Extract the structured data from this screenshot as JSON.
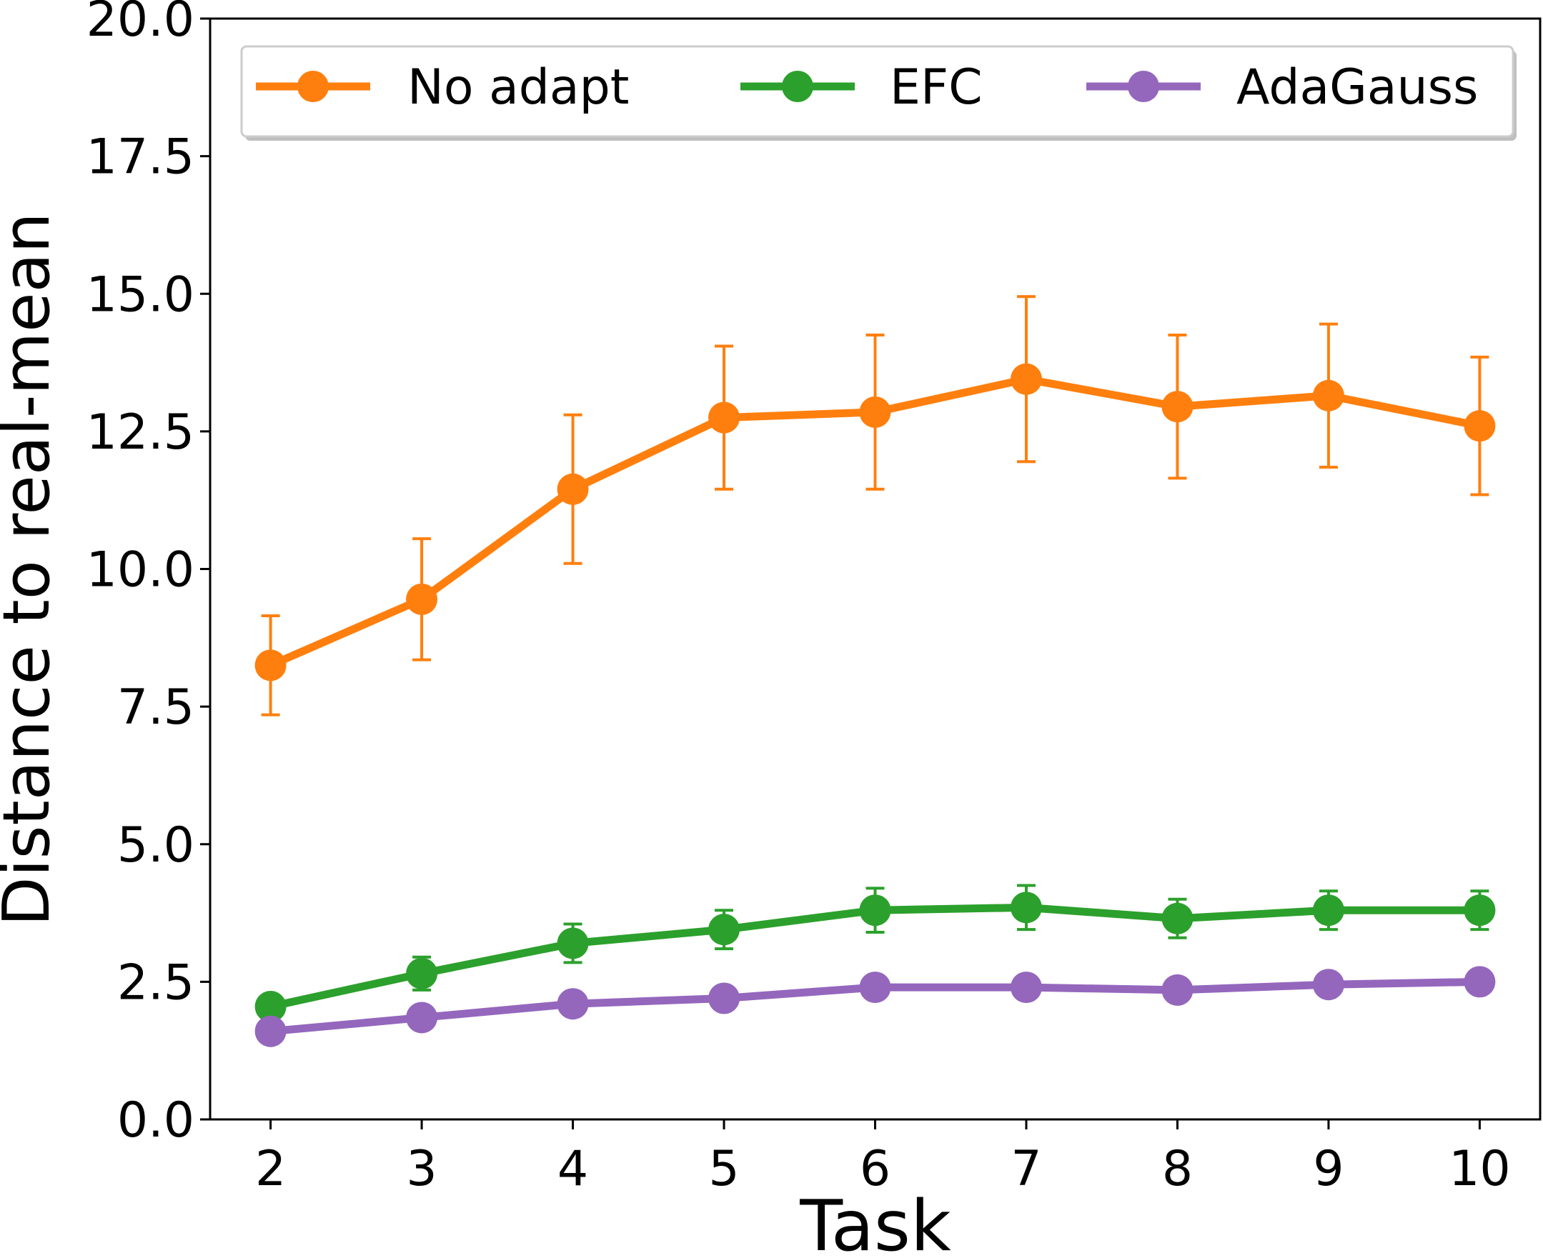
{
  "chart_data": {
    "type": "line",
    "xlabel": "Task",
    "ylabel": "Distance to real-mean",
    "x": [
      2,
      3,
      4,
      5,
      6,
      7,
      8,
      9,
      10
    ],
    "xticks": [
      "2",
      "3",
      "4",
      "5",
      "6",
      "7",
      "8",
      "9",
      "10"
    ],
    "ylim": [
      0,
      20
    ],
    "yticks": [
      "0.0",
      "2.5",
      "5.0",
      "7.5",
      "10.0",
      "12.5",
      "15.0",
      "17.5",
      "20.0"
    ],
    "grid": false,
    "legend_position": "top",
    "series": [
      {
        "name": "No adapt",
        "color": "#ff7f0e",
        "values": [
          8.25,
          9.45,
          11.45,
          12.75,
          12.85,
          13.45,
          12.95,
          13.15,
          12.6
        ],
        "error": [
          0.9,
          1.1,
          1.35,
          1.3,
          1.4,
          1.5,
          1.3,
          1.3,
          1.25
        ]
      },
      {
        "name": "EFC",
        "color": "#2ca02c",
        "values": [
          2.05,
          2.65,
          3.2,
          3.45,
          3.8,
          3.85,
          3.65,
          3.8,
          3.8
        ],
        "error": [
          0.05,
          0.3,
          0.35,
          0.35,
          0.4,
          0.4,
          0.35,
          0.35,
          0.35
        ]
      },
      {
        "name": "AdaGauss",
        "color": "#9467bd",
        "values": [
          1.6,
          1.85,
          2.1,
          2.2,
          2.4,
          2.4,
          2.35,
          2.45,
          2.5
        ],
        "error": [
          0.05,
          0.1,
          0.15,
          0.15,
          0.15,
          0.15,
          0.1,
          0.1,
          0.1
        ]
      }
    ]
  }
}
